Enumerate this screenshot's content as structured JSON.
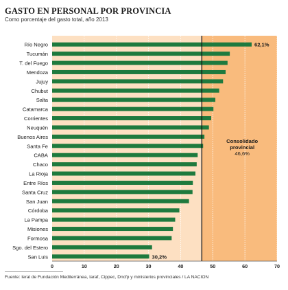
{
  "title": "GASTO EN PERSONAL POR PROVINCIA",
  "subtitle": "Como porcentaje del gasto total, año 2013",
  "source": "Fuente: Ieral de Fundación Mediterránea, Iaraf, Cippec, Dncfp y ministerios provinciales / LA NACION",
  "colors": {
    "bar": "#1e7a3e",
    "background_left": "#fde0c2",
    "background_right": "#f9bb7d",
    "reference_line": "#111111"
  },
  "chart_data": {
    "type": "bar",
    "orientation": "horizontal",
    "categories": [
      "Río Negro",
      "Tucumán",
      "T. del Fuego",
      "Mendoza",
      "Jujuy",
      "Chubut",
      "Salta",
      "Catamarca",
      "Corrientes",
      "Neuquén",
      "Buenos Aires",
      "Santa Fe",
      "CABA",
      "Chaco",
      "La Rioja",
      "Entre Ríos",
      "Santa Cruz",
      "San Juan",
      "Córdoba",
      "La Pampa",
      "Misiones",
      "Formosa",
      "Sgo. del Estero",
      "San Luis"
    ],
    "values": [
      62.1,
      55.3,
      54.6,
      54.0,
      53.2,
      52.0,
      50.8,
      50.2,
      49.5,
      48.8,
      47.4,
      47.0,
      45.3,
      45.0,
      44.6,
      43.8,
      43.7,
      42.6,
      39.6,
      38.3,
      37.6,
      37.2,
      31.1,
      30.2
    ],
    "data_labels": {
      "0": "62,1%",
      "23": "30,2%"
    },
    "xlim": [
      0,
      70
    ],
    "xticks": [
      "0",
      "10",
      "20",
      "30",
      "40",
      "50",
      "60",
      "70"
    ],
    "reference": {
      "value": 46.6,
      "label_lines": [
        "Consolidado",
        "provincial",
        "46,6%"
      ]
    },
    "grid": true
  }
}
